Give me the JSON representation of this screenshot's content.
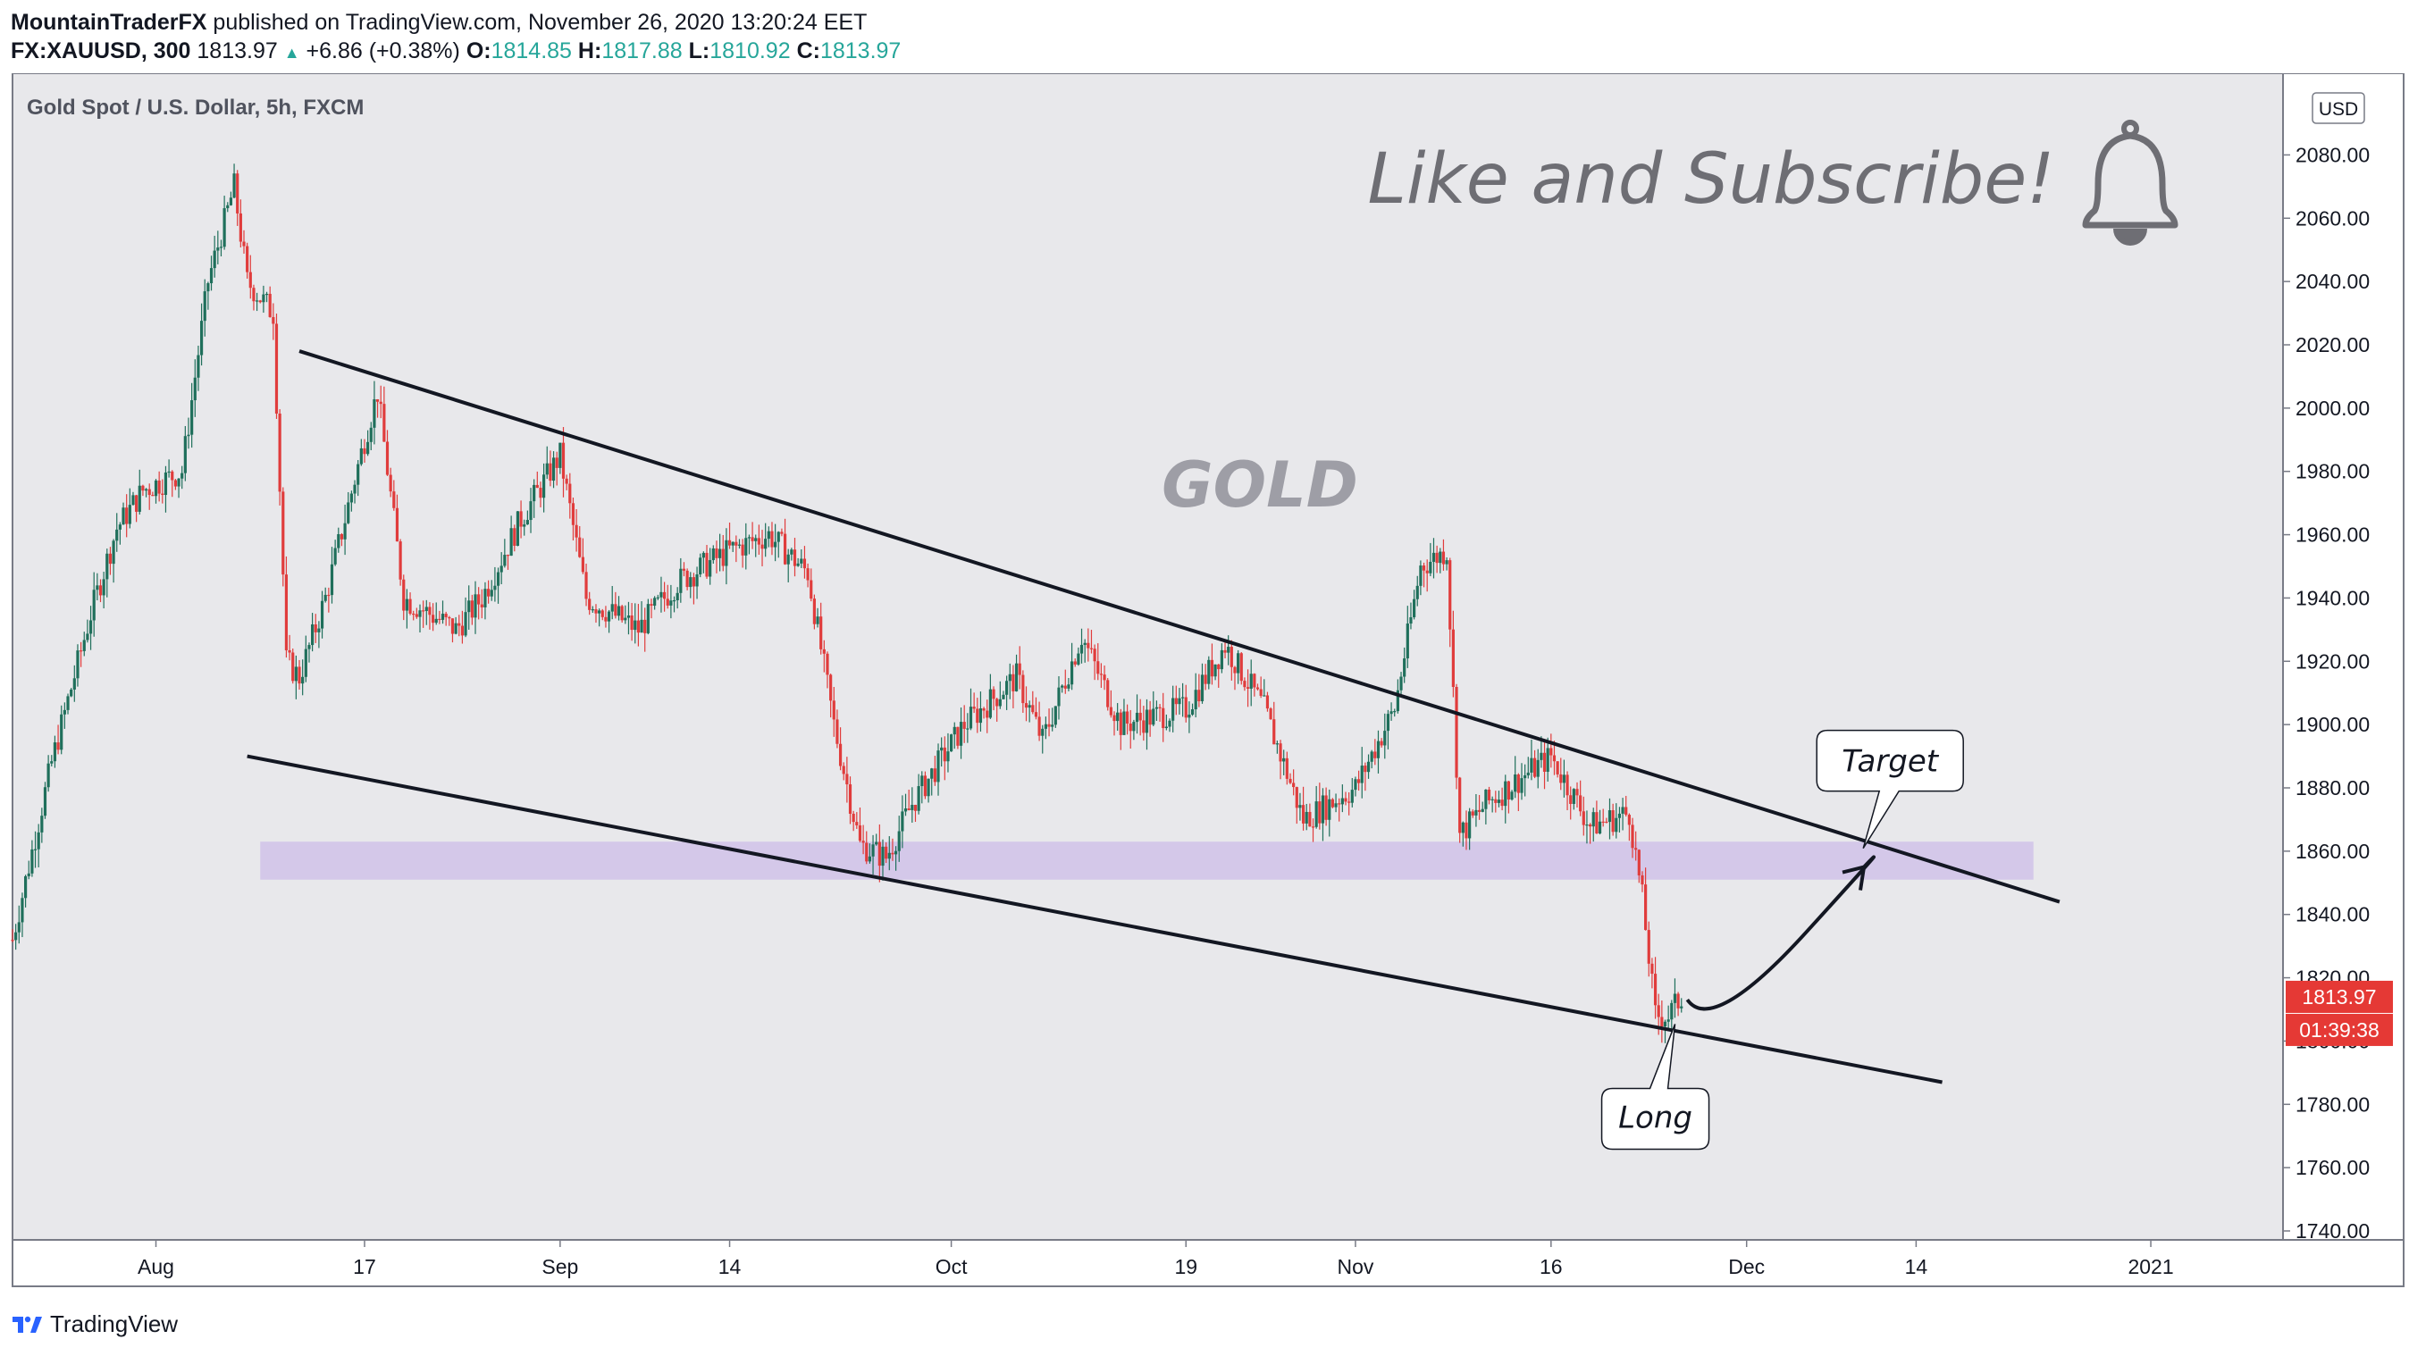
{
  "header": {
    "author": "MountainTraderFX",
    "published": " published on TradingView.com, November 26, 2020 13:20:24 EET",
    "symbol": "FX:XAUUSD, 300",
    "last": "1813.97",
    "change_arrow": "▲",
    "change": "+6.86 (+0.38%)",
    "o_label": "O:",
    "o_value": "1814.85",
    "h_label": "H:",
    "h_value": "1817.88",
    "l_label": "L:",
    "l_value": "1810.92",
    "c_label": "C:",
    "c_value": "1813.97"
  },
  "footer": {
    "brand": "TradingView",
    "logo_icon": "tradingview-logo-icon"
  },
  "chart_data": {
    "type": "candlestick",
    "title": "Gold Spot / U.S. Dollar, 5h, FXCM",
    "currency": "USD",
    "ylim": [
      1740,
      2090
    ],
    "yticks": [
      1740,
      1760,
      1780,
      1800,
      1820,
      1840,
      1860,
      1880,
      1900,
      1920,
      1940,
      1960,
      1980,
      2000,
      2020,
      2040,
      2060,
      2080
    ],
    "ytick_labels": [
      "1740.00",
      "1760.00",
      "1780.00",
      "1800.00",
      "1820.00",
      "1840.00",
      "1860.00",
      "1880.00",
      "1900.00",
      "1920.00",
      "1940.00",
      "1960.00",
      "1980.00",
      "2000.00",
      "2020.00",
      "2040.00",
      "2060.00",
      "2080.00"
    ],
    "xlim": [
      "2020-07-21",
      "2021-01-06"
    ],
    "xticks": [
      {
        "date": "2020-08-01",
        "label": "Aug"
      },
      {
        "date": "2020-08-17",
        "label": "17"
      },
      {
        "date": "2020-09-01",
        "label": "Sep"
      },
      {
        "date": "2020-09-14",
        "label": "14"
      },
      {
        "date": "2020-10-01",
        "label": "Oct"
      },
      {
        "date": "2020-10-19",
        "label": "19"
      },
      {
        "date": "2020-11-01",
        "label": "Nov"
      },
      {
        "date": "2020-11-16",
        "label": "16"
      },
      {
        "date": "2020-12-01",
        "label": "Dec"
      },
      {
        "date": "2020-12-14",
        "label": "14"
      },
      {
        "date": "2021-01-01",
        "label": "2021"
      }
    ],
    "price_path": [
      [
        "2020-07-21",
        1832
      ],
      [
        "2020-07-24",
        1888
      ],
      [
        "2020-07-27",
        1935
      ],
      [
        "2020-07-29",
        1962
      ],
      [
        "2020-07-31",
        1974
      ],
      [
        "2020-08-03",
        1980
      ],
      [
        "2020-08-05",
        2040
      ],
      [
        "2020-08-07",
        2070
      ],
      [
        "2020-08-08",
        2040
      ],
      [
        "2020-08-10",
        2030
      ],
      [
        "2020-08-11",
        1920
      ],
      [
        "2020-08-12",
        1915
      ],
      [
        "2020-08-14",
        1940
      ],
      [
        "2020-08-17",
        1990
      ],
      [
        "2020-08-18",
        2005
      ],
      [
        "2020-08-20",
        1940
      ],
      [
        "2020-08-24",
        1930
      ],
      [
        "2020-08-26",
        1940
      ],
      [
        "2020-08-29",
        1965
      ],
      [
        "2020-09-01",
        1985
      ],
      [
        "2020-09-03",
        1940
      ],
      [
        "2020-09-07",
        1930
      ],
      [
        "2020-09-10",
        1945
      ],
      [
        "2020-09-14",
        1955
      ],
      [
        "2020-09-17",
        1960
      ],
      [
        "2020-09-20",
        1948
      ],
      [
        "2020-09-22",
        1900
      ],
      [
        "2020-09-24",
        1862
      ],
      [
        "2020-09-26",
        1858
      ],
      [
        "2020-09-28",
        1875
      ],
      [
        "2020-10-02",
        1900
      ],
      [
        "2020-10-06",
        1915
      ],
      [
        "2020-10-08",
        1895
      ],
      [
        "2020-10-11",
        1928
      ],
      [
        "2020-10-14",
        1900
      ],
      [
        "2020-10-19",
        1905
      ],
      [
        "2020-10-22",
        1925
      ],
      [
        "2020-10-25",
        1905
      ],
      [
        "2020-10-28",
        1870
      ],
      [
        "2020-11-01",
        1880
      ],
      [
        "2020-11-04",
        1905
      ],
      [
        "2020-11-06",
        1950
      ],
      [
        "2020-11-08",
        1955
      ],
      [
        "2020-11-09",
        1865
      ],
      [
        "2020-11-11",
        1875
      ],
      [
        "2020-11-16",
        1890
      ],
      [
        "2020-11-19",
        1868
      ],
      [
        "2020-11-22",
        1872
      ],
      [
        "2020-11-23",
        1845
      ],
      [
        "2020-11-24",
        1808
      ],
      [
        "2020-11-25",
        1808
      ],
      [
        "2020-11-26",
        1813.97
      ]
    ],
    "support_zone": {
      "from": 1851,
      "to": 1863,
      "start": "2020-08-09",
      "end": "2020-12-23",
      "color": "#d1c4e9"
    },
    "trendlines": [
      {
        "name": "upper",
        "from": {
          "date": "2020-08-12",
          "price": 2018
        },
        "to": {
          "date": "2020-12-25",
          "price": 1844
        }
      },
      {
        "name": "lower",
        "from": {
          "date": "2020-08-08",
          "price": 1890
        },
        "to": {
          "date": "2020-12-16",
          "price": 1787
        }
      }
    ],
    "projection_arrow": {
      "from": {
        "date": "2020-11-27",
        "price": 1808
      },
      "to": {
        "date": "2020-12-10",
        "price": 1855
      }
    },
    "callouts": [
      {
        "text": "Target",
        "date": "2020-12-12",
        "price": 1888
      },
      {
        "text": "Long",
        "date": "2020-11-24",
        "price": 1776
      }
    ],
    "watermark": "GOLD",
    "promo_text": "Like and Subscribe!",
    "promo_icon": "bell-icon",
    "last_price_label": "1813.97",
    "countdown_label": "01:39:38",
    "colors": {
      "background": "#e8e8eb",
      "up": "#1f6f5b",
      "down": "#e03c3c",
      "last_price": "#e53935",
      "line": "#131722",
      "zone": "#d1c4e9"
    }
  }
}
